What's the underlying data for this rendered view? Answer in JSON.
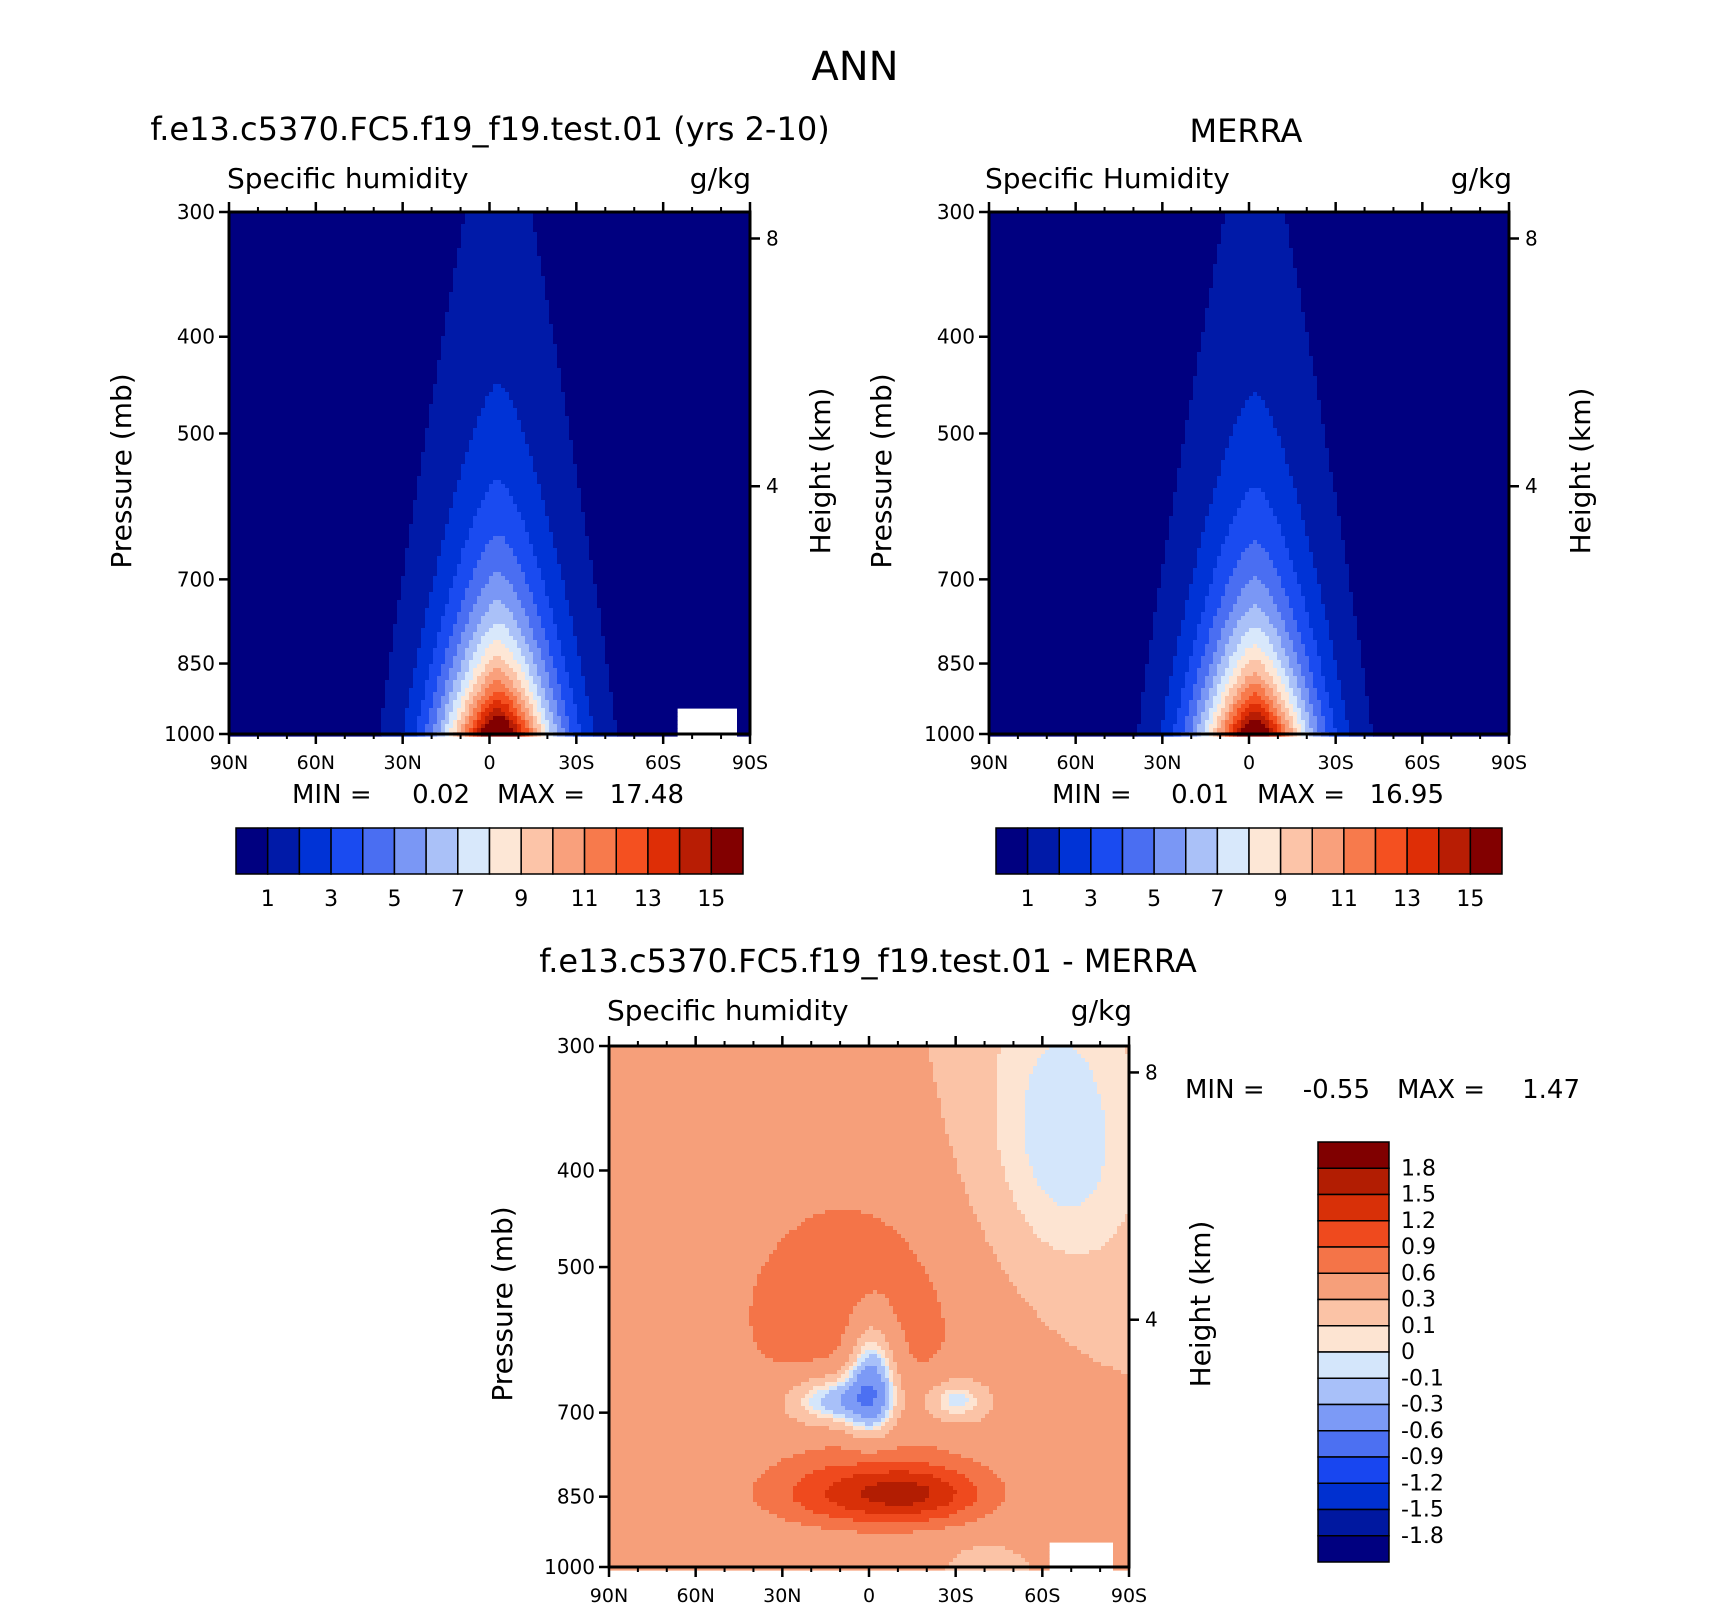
{
  "page_title": "ANN",
  "chart_data": [
    {
      "type": "contour",
      "title": "f.e13.c5370.FC5.f19_f19.test.01 (yrs 2-10)",
      "variable": "Specific humidity",
      "units": "g/kg",
      "ylabel": "Pressure (mb)",
      "ylabel_right": "Height (km)",
      "x_ticks": [
        "90N",
        "60N",
        "30N",
        "0",
        "30S",
        "60S",
        "90S"
      ],
      "y_ticks": [
        300,
        400,
        500,
        700,
        850,
        1000
      ],
      "height_ticks": [
        8,
        4
      ],
      "min_label": "MIN =",
      "min_value": "0.02",
      "max_label": "MAX =",
      "max_value": "17.48",
      "peak_latitude": -3,
      "levels": [
        1,
        2,
        3,
        4,
        5,
        6,
        7,
        8,
        9,
        10,
        11,
        12,
        13,
        14,
        15
      ],
      "colorbar_labels": [
        "1",
        "3",
        "5",
        "7",
        "9",
        "11",
        "13",
        "15"
      ]
    },
    {
      "type": "contour",
      "title": "MERRA",
      "variable": "Specific Humidity",
      "units": "g/kg",
      "ylabel": "Pressure (mb)",
      "ylabel_right": "Height (km)",
      "x_ticks": [
        "90N",
        "60N",
        "30N",
        "0",
        "30S",
        "60S",
        "90S"
      ],
      "y_ticks": [
        300,
        400,
        500,
        700,
        850,
        1000
      ],
      "height_ticks": [
        8,
        4
      ],
      "min_label": "MIN =",
      "min_value": "0.01",
      "max_label": "MAX =",
      "max_value": "16.95",
      "peak_latitude": -2,
      "levels": [
        1,
        2,
        3,
        4,
        5,
        6,
        7,
        8,
        9,
        10,
        11,
        12,
        13,
        14,
        15
      ],
      "colorbar_labels": [
        "1",
        "3",
        "5",
        "7",
        "9",
        "11",
        "13",
        "15"
      ]
    },
    {
      "type": "contour",
      "title": "f.e13.c5370.FC5.f19_f19.test.01 - MERRA",
      "variable": "Specific humidity",
      "units": "g/kg",
      "ylabel": "Pressure (mb)",
      "ylabel_right": "Height (km)",
      "x_ticks": [
        "90N",
        "60N",
        "30N",
        "0",
        "30S",
        "60S",
        "90S"
      ],
      "y_ticks": [
        300,
        400,
        500,
        700,
        850,
        1000
      ],
      "height_ticks": [
        8,
        4
      ],
      "min_label": "MIN =",
      "min_value": "-0.55",
      "max_label": "MAX =",
      "max_value": "1.47",
      "levels": [
        -1.8,
        -1.5,
        -1.2,
        -0.9,
        -0.6,
        -0.3,
        -0.1,
        0,
        0.1,
        0.3,
        0.6,
        0.9,
        1.2,
        1.5,
        1.8
      ],
      "colorbar_labels": [
        "1.8",
        "1.5",
        "1.2",
        "0.9",
        "0.6",
        "0.3",
        "0.1",
        "0",
        "-0.1",
        "-0.3",
        "-0.6",
        "-0.9",
        "-1.2",
        "-1.5",
        "-1.8"
      ]
    }
  ],
  "colors": {
    "humidity_scale": [
      "#000080",
      "#001aa8",
      "#0033d6",
      "#1a4bf0",
      "#4a6ef2",
      "#7a97f5",
      "#aac1f8",
      "#d8e8fb",
      "#fde7d6",
      "#fcc4a8",
      "#f9a07c",
      "#f77a4c",
      "#f45020",
      "#de2e06",
      "#b81d04",
      "#820000"
    ],
    "difference_scale": [
      "#000080",
      "#0018a0",
      "#0030d0",
      "#1846f0",
      "#4c70f2",
      "#7c9af6",
      "#a8c0f9",
      "#d4e6fb",
      "#fde4d2",
      "#fbc3a6",
      "#f69f7a",
      "#f47448",
      "#ef4a1e",
      "#d83008",
      "#b21d02",
      "#800000"
    ]
  }
}
